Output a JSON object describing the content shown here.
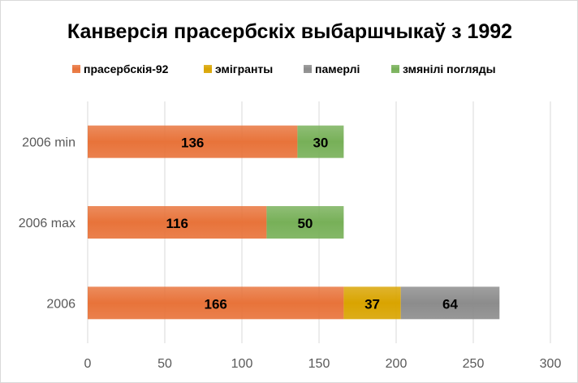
{
  "chart_data": {
    "type": "bar",
    "orientation": "horizontal",
    "stacked": true,
    "title": "Канверсія прасербскіх выбаршчыкаў з 1992",
    "categories": [
      "2006 min",
      "2006 max",
      "2006"
    ],
    "series": [
      {
        "name": "прасербскія-92",
        "values": [
          136,
          116,
          166
        ],
        "color": "#e8733a"
      },
      {
        "name": "эмігранты",
        "values": [
          0,
          0,
          37
        ],
        "color": "#d9a400"
      },
      {
        "name": "памерлі",
        "values": [
          0,
          0,
          64
        ],
        "color": "#8c8c8c"
      },
      {
        "name": "змянілі погляды",
        "values": [
          30,
          50,
          0
        ],
        "color": "#77b058"
      }
    ],
    "xlim": [
      0,
      300
    ],
    "xticks": [
      0,
      50,
      100,
      150,
      200,
      250,
      300
    ],
    "grid": true,
    "legend_position": "top"
  }
}
